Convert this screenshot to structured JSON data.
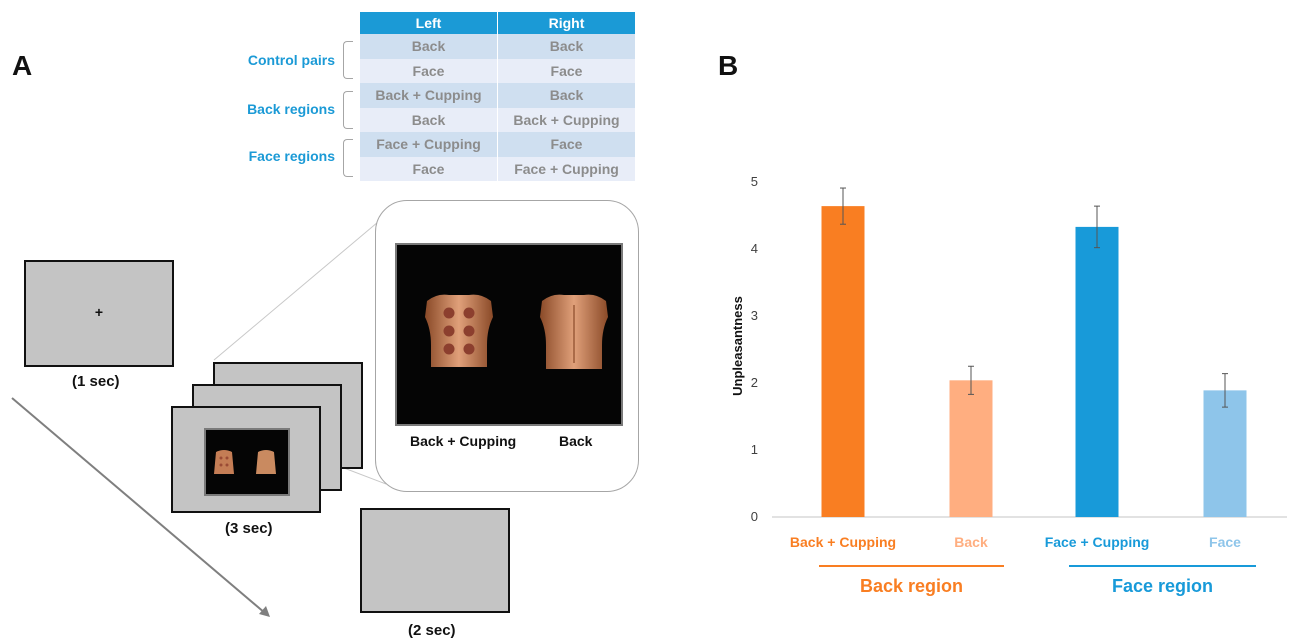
{
  "panels": {
    "a": "A",
    "b": "B"
  },
  "condition_table": {
    "headers": [
      "Left",
      "Right"
    ],
    "groups": [
      {
        "label": "Control pairs",
        "rows": [
          [
            "Back",
            "Back"
          ],
          [
            "Face",
            "Face"
          ]
        ]
      },
      {
        "label": "Back regions",
        "rows": [
          [
            "Back + Cupping",
            "Back"
          ],
          [
            "Back",
            "Back + Cupping"
          ]
        ]
      },
      {
        "label": "Face regions",
        "rows": [
          [
            "Face + Cupping",
            "Face"
          ],
          [
            "Face",
            "Face + Cupping"
          ]
        ]
      }
    ]
  },
  "trial": {
    "fixation": "+",
    "durations": {
      "fixation": "(1 sec)",
      "stimulus": "(3 sec)",
      "blank": "(2 sec)"
    },
    "zoom_labels": {
      "left": "Back + Cupping",
      "right": "Back"
    }
  },
  "colors": {
    "back_cupping": "#f97e22",
    "back": "#ffae80",
    "face_cupping": "#189ad9",
    "face": "#8ec5ea",
    "table_header": "#1b9ad6"
  },
  "chart_data": {
    "type": "bar",
    "categories": [
      "Back + Cupping",
      "Back",
      "Face + Cupping",
      "Face"
    ],
    "values": [
      4.64,
      2.04,
      4.33,
      1.89
    ],
    "errors": [
      0.27,
      0.21,
      0.31,
      0.25
    ],
    "ylabel": "Unpleasantness",
    "xlabel": "",
    "ylim": [
      0,
      5
    ],
    "yticks": [
      0,
      1,
      2,
      3,
      4,
      5
    ],
    "grid": false,
    "groups": [
      {
        "label": "Back region",
        "categories": [
          0,
          1
        ]
      },
      {
        "label": "Face region",
        "categories": [
          2,
          3
        ]
      }
    ]
  }
}
